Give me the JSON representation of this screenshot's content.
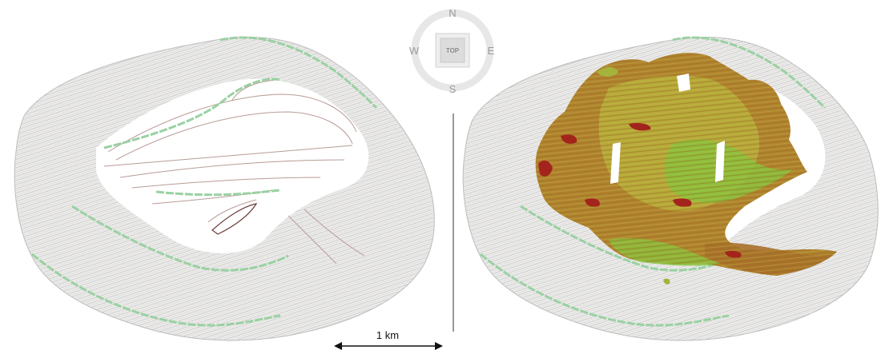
{
  "compass": {
    "north": "N",
    "south": "S",
    "east": "E",
    "west": "W",
    "view_button": "TOP",
    "ring_color": "#e7e7e7"
  },
  "scale_bar": {
    "label": "1 km"
  },
  "colors": {
    "bench_line": "#c9c9c9",
    "haul_road": "#7ec48a",
    "surface_brown": "#b57f2a",
    "surface_olive": "#b5b23a",
    "surface_green": "#7fc23c",
    "surface_red": "#a3241c"
  }
}
